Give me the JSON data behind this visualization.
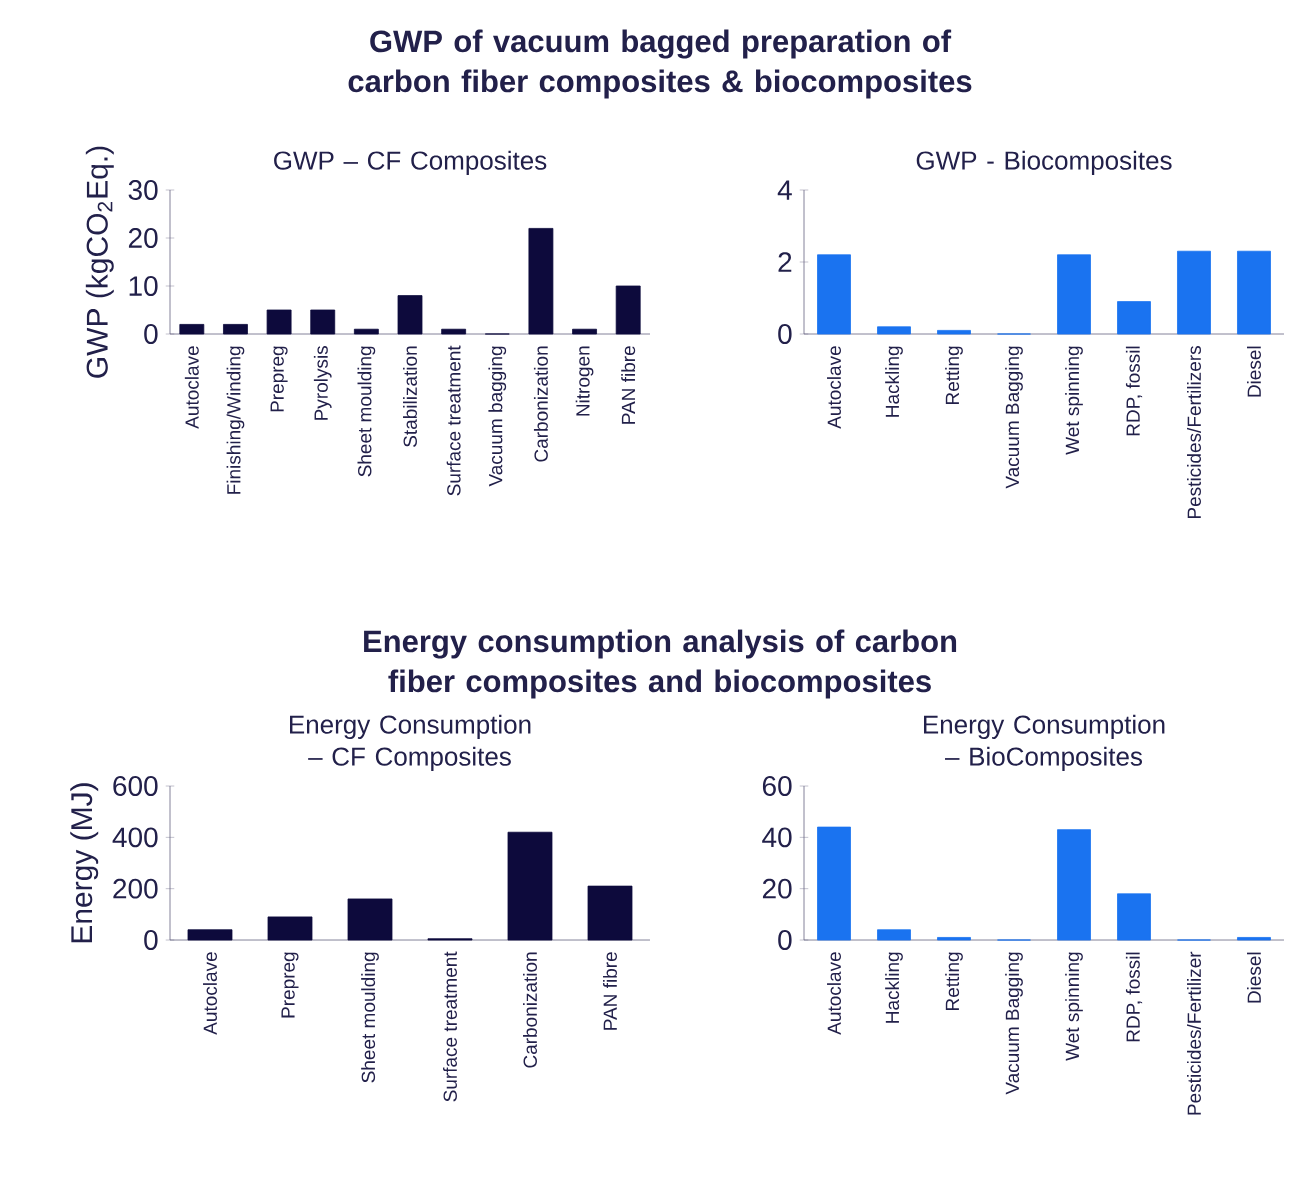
{
  "chart_data": [
    {
      "type": "bar",
      "title": "GWP – CF Composites",
      "ylabel": "GWP (kgCO$_{2}$Eq.)",
      "annotations": [
        "GWP of vacuum bagged preparation of carbon fiber composites & biocomposites"
      ],
      "categories": [
        "Autoclave",
        "Finishing/Winding",
        "Prepreg",
        "Pyrolysis",
        "Sheet moulding",
        "Stabilization",
        "Surface treatment",
        "Vacuum bagging",
        "Carbonization",
        "Nitrogen",
        "PAN fibre"
      ],
      "values": [
        2,
        2,
        5,
        5,
        1,
        8,
        1,
        0,
        22,
        1,
        10
      ],
      "color": "#0d0a3c",
      "ylim": [
        0,
        30
      ],
      "yticks": [
        0,
        10,
        20,
        30
      ]
    },
    {
      "type": "bar",
      "title": "GWP - Biocomposites",
      "categories": [
        "Autoclave",
        "Hackling",
        "Retting",
        "Vacuum Bagging",
        "Wet spinning",
        "RDP, fossil",
        "Pesticides/Fertilizers",
        "Diesel"
      ],
      "values": [
        2.2,
        0.2,
        0.1,
        0,
        2.2,
        0.9,
        2.3,
        2.3
      ],
      "color": "#1a73f0",
      "ylim": [
        0,
        4
      ],
      "yticks": [
        0,
        2,
        4
      ]
    },
    {
      "type": "bar",
      "title": "Energy Consumption – CF Composites",
      "ylabel": "Energy (MJ)",
      "annotations": [
        "Energy consumption analysis of carbon fiber composites and biocomposites"
      ],
      "categories": [
        "Autoclave",
        "Prepreg",
        "Sheet moulding",
        "Surface treatment",
        "Carbonization",
        "PAN fibre"
      ],
      "values": [
        40,
        90,
        160,
        5,
        420,
        210
      ],
      "color": "#0d0a3c",
      "ylim": [
        0,
        600
      ],
      "yticks": [
        0,
        200,
        400,
        600
      ]
    },
    {
      "type": "bar",
      "title": "Energy Consumption – BioComposites",
      "categories": [
        "Autoclave",
        "Hackling",
        "Retting",
        "Vacuum Bagging",
        "Wet spinning",
        "RDP, fossil",
        "Pesticides/Fertilizer",
        "Diesel"
      ],
      "values": [
        44,
        4,
        1,
        0,
        43,
        18,
        0,
        1
      ],
      "color": "#1a73f0",
      "ylim": [
        0,
        60
      ],
      "yticks": [
        0,
        20,
        40,
        60
      ]
    }
  ]
}
